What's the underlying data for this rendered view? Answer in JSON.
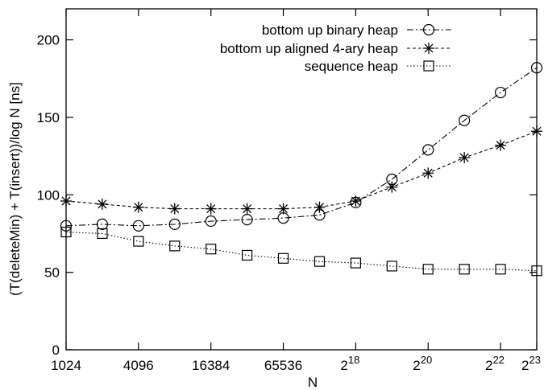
{
  "chart_data": {
    "type": "line",
    "title": "",
    "xlabel": "N",
    "ylabel": "(T(deleteMin) + T(insert))/log N  [ns]",
    "x_scale": "log2",
    "xlim_log2": [
      10,
      23
    ],
    "ylim": [
      0,
      220
    ],
    "grid": false,
    "legend_position": "top-right",
    "x_ticks": [
      {
        "log2": 10,
        "label": "1024",
        "sup": ""
      },
      {
        "log2": 12,
        "label": "4096",
        "sup": ""
      },
      {
        "log2": 14,
        "label": "16384",
        "sup": ""
      },
      {
        "log2": 16,
        "label": "65536",
        "sup": ""
      },
      {
        "log2": 18,
        "label": "2",
        "sup": "18"
      },
      {
        "log2": 20,
        "label": "2",
        "sup": "20"
      },
      {
        "log2": 22,
        "label": "2",
        "sup": "22"
      },
      {
        "log2": 23,
        "label": "2",
        "sup": "23"
      }
    ],
    "y_ticks": [
      {
        "value": 0,
        "label": "0"
      },
      {
        "value": 50,
        "label": "50"
      },
      {
        "value": 100,
        "label": "100"
      },
      {
        "value": 150,
        "label": "150"
      },
      {
        "value": 200,
        "label": "200"
      }
    ],
    "x_log2": [
      10,
      11,
      12,
      13,
      14,
      15,
      16,
      17,
      18,
      19,
      20,
      21,
      22,
      23
    ],
    "series": [
      {
        "name": "bottom up binary heap",
        "marker": "circle",
        "dash": "8,3,2,3",
        "values": [
          80,
          81,
          80,
          81,
          83,
          84,
          85,
          87,
          95,
          110,
          129,
          148,
          166,
          182
        ]
      },
      {
        "name": "bottom up aligned 4-ary heap",
        "marker": "star",
        "dash": "4,3",
        "values": [
          96,
          94,
          92,
          91,
          91,
          91,
          91,
          92,
          96,
          105,
          114,
          124,
          132,
          141
        ]
      },
      {
        "name": "sequence heap",
        "marker": "square",
        "dash": "1.5,2.5",
        "values": [
          76,
          75,
          70,
          67,
          65,
          61,
          59,
          57,
          56,
          54,
          52,
          52,
          52,
          51
        ]
      }
    ]
  }
}
